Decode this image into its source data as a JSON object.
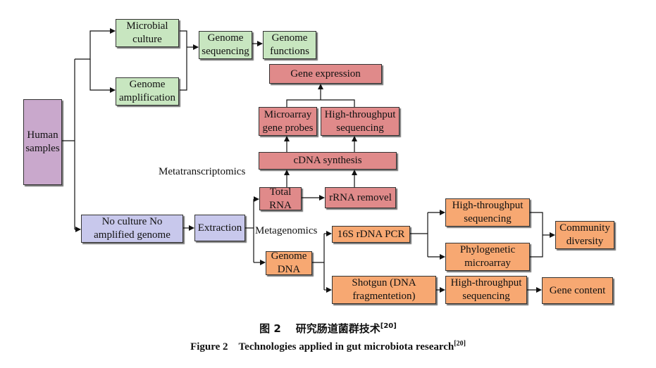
{
  "nodes": {
    "human_samples": "Human samples",
    "microbial_culture": "Microbial culture",
    "genome_amplification": "Genome amplification",
    "genome_sequencing": "Genome sequencing",
    "genome_functions": "Genome functions",
    "gene_expression": "Gene expression",
    "microarray_probes": "Microarray gene probes",
    "ht_sequencing_rna": "High-throughput sequencing",
    "cdna_synthesis": "cDNA synthesis",
    "total_rna": "Total RNA",
    "rrna_removal": "rRNA removel",
    "no_culture": "No culture No amplified genome",
    "extraction": "Extraction",
    "genome_dna": "Genome DNA",
    "pcr_16s": "16S rDNA PCR",
    "ht_sequencing_16s": "High-throughput sequencing",
    "phylogenetic_microarray": "Phylogenetic microarray",
    "community_diversity": "Community diversity",
    "shotgun": "Shotgun (DNA fragmentetion)",
    "ht_sequencing_shotgun": "High-throughput sequencing",
    "gene_content": "Gene content"
  },
  "labels": {
    "metatranscriptomics": "Metatranscriptomics",
    "metagenomics": "Metagenomics"
  },
  "caption": {
    "cn_prefix": "图 2",
    "cn_text": "研究肠道菌群技术",
    "en_prefix": "Figure 2",
    "en_text": "Technologies applied in gut microbiota research",
    "ref": "[20]"
  },
  "colors": {
    "green": "#c8e6c0",
    "purple": "#c9a8cc",
    "lavender": "#c8c8ec",
    "red": "#e08a8a",
    "orange": "#f7a872"
  }
}
